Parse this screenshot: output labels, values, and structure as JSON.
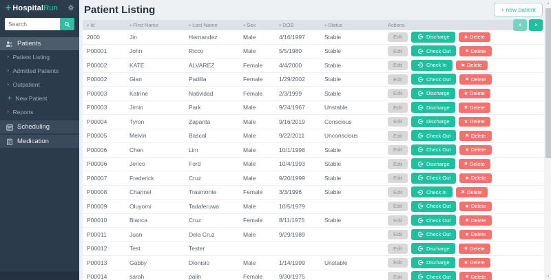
{
  "brand": {
    "plus": "+",
    "name_primary": "Hospital",
    "name_secondary": "Run"
  },
  "sidebar": {
    "search_placeholder": "Search",
    "items": [
      {
        "label": "Patients",
        "kind": "section",
        "icon": "users-icon",
        "active": true
      },
      {
        "label": "Patient Listing",
        "kind": "sub",
        "icon": "chevron-right-icon"
      },
      {
        "label": "Admitted Patients",
        "kind": "sub",
        "icon": "chevron-right-icon"
      },
      {
        "label": "Outpatient",
        "kind": "sub",
        "icon": "chevron-right-icon"
      },
      {
        "label": "New Patient",
        "kind": "sub",
        "icon": "plus-icon"
      },
      {
        "label": "Reports",
        "kind": "sub",
        "icon": "chevron-right-icon"
      },
      {
        "label": "Scheduling",
        "kind": "section",
        "icon": "calendar-icon",
        "active": false
      },
      {
        "label": "Medication",
        "kind": "section",
        "icon": "clipboard-icon",
        "active": false
      }
    ]
  },
  "header": {
    "title": "Patient Listing",
    "new_patient_label": "+ new patient"
  },
  "table": {
    "columns": [
      {
        "label": "Id",
        "sortable": true
      },
      {
        "label": "First Name",
        "sortable": true
      },
      {
        "label": "Last Name",
        "sortable": true
      },
      {
        "label": "Sex",
        "sortable": true
      },
      {
        "label": "DOB",
        "sortable": true
      },
      {
        "label": "Status",
        "sortable": true
      },
      {
        "label": "Actions",
        "sortable": false
      }
    ],
    "edit_label": "Edit",
    "delete_label": "Delete",
    "pagination": {
      "prev": "‹",
      "next": "›"
    },
    "rows": [
      {
        "id": "2000",
        "first": "Jin",
        "last": "Hernandez",
        "sex": "Male",
        "dob": "4/16/1997",
        "status": "Stable",
        "action": "Discharge",
        "action_icon": "sign-out-icon"
      },
      {
        "id": "P00001",
        "first": "John",
        "last": "Ricco",
        "sex": "Male",
        "dob": "5/5/1980",
        "status": "Stable",
        "action": "Check Out",
        "action_icon": "sign-out-icon"
      },
      {
        "id": "P00002",
        "first": "KATE",
        "last": "ALVAREZ",
        "sex": "Female",
        "dob": "4/4/2000",
        "status": "Stable",
        "action": "Check In",
        "action_icon": "sign-in-icon"
      },
      {
        "id": "P00002",
        "first": "Gian",
        "last": "Padilla",
        "sex": "Female",
        "dob": "1/29/2002",
        "status": "Stable",
        "action": "Check Out",
        "action_icon": "sign-out-icon"
      },
      {
        "id": "P00003",
        "first": "Katrine",
        "last": "Natividad",
        "sex": "Female",
        "dob": "2/3/1999",
        "status": "Stable",
        "action": "Discharge",
        "action_icon": "sign-out-icon"
      },
      {
        "id": "P00003",
        "first": "Jimin",
        "last": "Park",
        "sex": "Male",
        "dob": "9/24/1967",
        "status": "Unstable",
        "action": "Discharge",
        "action_icon": "sign-out-icon"
      },
      {
        "id": "P00004",
        "first": "Tyron",
        "last": "Zapanta",
        "sex": "Male",
        "dob": "9/16/2019",
        "status": "Conscious",
        "action": "Discharge",
        "action_icon": "sign-out-icon"
      },
      {
        "id": "P00005",
        "first": "Melvin",
        "last": "Bascal",
        "sex": "Male",
        "dob": "9/22/2011",
        "status": "Unconscious",
        "action": "Check Out",
        "action_icon": "sign-out-icon"
      },
      {
        "id": "P00006",
        "first": "Chen",
        "last": "Lim",
        "sex": "Male",
        "dob": "10/1/1998",
        "status": "Stable",
        "action": "Check Out",
        "action_icon": "sign-out-icon"
      },
      {
        "id": "P00006",
        "first": "Jerico",
        "last": "Ford",
        "sex": "Male",
        "dob": "10/4/1993",
        "status": "Stable",
        "action": "Discharge",
        "action_icon": "sign-out-icon"
      },
      {
        "id": "P00007",
        "first": "Frederick",
        "last": "Cruz",
        "sex": "Male",
        "dob": "9/20/1999",
        "status": "Stable",
        "action": "Check Out",
        "action_icon": "sign-out-icon"
      },
      {
        "id": "P00008",
        "first": "Channel",
        "last": "Trasmonte",
        "sex": "Female",
        "dob": "3/3/1996",
        "status": "Stable",
        "action": "Check In",
        "action_icon": "sign-in-icon"
      },
      {
        "id": "P00009",
        "first": "Oluyomi",
        "last": "Tadaferuwa",
        "sex": "Male",
        "dob": "10/5/1979",
        "status": "",
        "action": "Check Out",
        "action_icon": "sign-out-icon"
      },
      {
        "id": "P00010",
        "first": "Bianca",
        "last": "Cruz",
        "sex": "Female",
        "dob": "8/11/1975",
        "status": "Stable",
        "action": "Check Out",
        "action_icon": "sign-out-icon"
      },
      {
        "id": "P00011",
        "first": "Juan",
        "last": "Dela Cruz",
        "sex": "Male",
        "dob": "9/29/1989",
        "status": "",
        "action": "Check Out",
        "action_icon": "sign-out-icon"
      },
      {
        "id": "P00012",
        "first": "Test",
        "last": "Tester",
        "sex": "",
        "dob": "",
        "status": "",
        "action": "Discharge",
        "action_icon": "sign-out-icon"
      },
      {
        "id": "P00013",
        "first": "Gabby",
        "last": "Dionisio",
        "sex": "Male",
        "dob": "1/14/1999",
        "status": "Unstable",
        "action": "Discharge",
        "action_icon": "sign-out-icon"
      },
      {
        "id": "P00014",
        "first": "sarah",
        "last": "palin",
        "sex": "Female",
        "dob": "9/30/1975",
        "status": "",
        "action": "Check Out",
        "action_icon": "sign-out-icon"
      }
    ]
  },
  "icons": {
    "x-icon": "✖",
    "chevron-right-icon": "›",
    "plus-icon": "+",
    "sort-desc-icon": "▾",
    "scroll-up-icon": "▴",
    "scroll-down-icon": "▾"
  },
  "colors": {
    "teal_accent": "#1fbf9f",
    "teal_light": "#76d3bd",
    "delete_red": "#f6716e",
    "sidebar_bg": "#2b3b4b",
    "sidebar_section_bg": "#3a4a5c",
    "sidebar_active_bg": "#4d5c6b",
    "table_header_bg": "#dde2e8",
    "title_text": "#263440"
  }
}
